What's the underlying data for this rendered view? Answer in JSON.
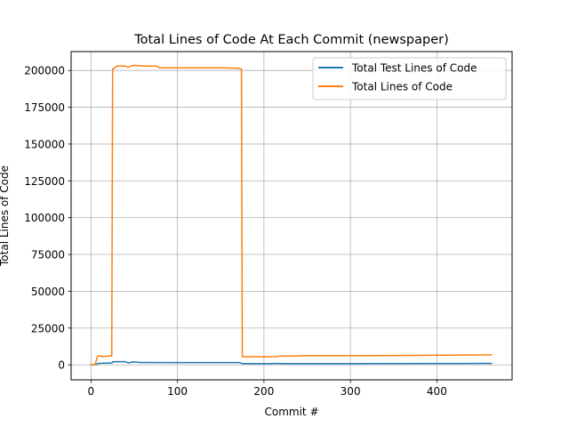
{
  "chart_data": {
    "type": "line",
    "title": "Total Lines of Code At Each Commit (newspaper)",
    "xlabel": "Commit #",
    "ylabel": "Total Lines of Code",
    "xlim": [
      -23,
      487
    ],
    "ylim": [
      -10200,
      212800
    ],
    "xticks": [
      0,
      100,
      200,
      300,
      400
    ],
    "yticks": [
      0,
      25000,
      50000,
      75000,
      100000,
      125000,
      150000,
      175000,
      200000
    ],
    "grid": true,
    "legend": "top-right",
    "series": [
      {
        "name": "Total Test Lines of Code",
        "color": "#1f77b4",
        "points": [
          [
            0,
            0
          ],
          [
            5,
            200
          ],
          [
            7,
            500
          ],
          [
            9,
            1000
          ],
          [
            15,
            1100
          ],
          [
            20,
            1200
          ],
          [
            24,
            1200
          ],
          [
            25,
            2000
          ],
          [
            30,
            2100
          ],
          [
            40,
            2100
          ],
          [
            43,
            1300
          ],
          [
            45,
            1600
          ],
          [
            48,
            1900
          ],
          [
            52,
            1900
          ],
          [
            57,
            1600
          ],
          [
            60,
            1600
          ],
          [
            100,
            1500
          ],
          [
            150,
            1500
          ],
          [
            172,
            1500
          ],
          [
            175,
            800
          ],
          [
            210,
            800
          ],
          [
            215,
            1000
          ],
          [
            220,
            800
          ],
          [
            300,
            800
          ],
          [
            400,
            900
          ],
          [
            463,
            1000
          ]
        ]
      },
      {
        "name": "Total Lines of Code",
        "color": "#ff7f0e",
        "points": [
          [
            0,
            0
          ],
          [
            5,
            500
          ],
          [
            7,
            5000
          ],
          [
            8,
            6000
          ],
          [
            12,
            6000
          ],
          [
            14,
            5500
          ],
          [
            20,
            6000
          ],
          [
            24,
            6000
          ],
          [
            25,
            201000
          ],
          [
            27,
            201500
          ],
          [
            30,
            203000
          ],
          [
            40,
            203000
          ],
          [
            43,
            202000
          ],
          [
            46,
            203000
          ],
          [
            50,
            203500
          ],
          [
            60,
            203000
          ],
          [
            76,
            203000
          ],
          [
            79,
            201800
          ],
          [
            100,
            201800
          ],
          [
            150,
            201800
          ],
          [
            170,
            201500
          ],
          [
            174,
            201000
          ],
          [
            175,
            5500
          ],
          [
            200,
            5500
          ],
          [
            215,
            5600
          ],
          [
            218,
            6000
          ],
          [
            238,
            6000
          ],
          [
            240,
            6200
          ],
          [
            300,
            6200
          ],
          [
            400,
            6500
          ],
          [
            463,
            6800
          ]
        ]
      }
    ]
  }
}
